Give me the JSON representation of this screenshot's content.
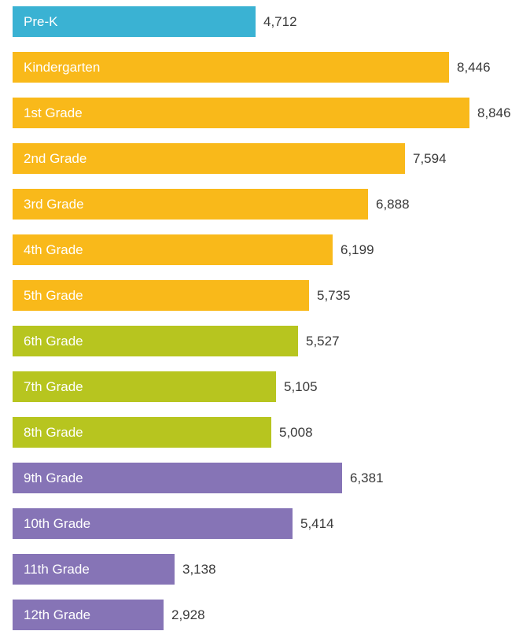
{
  "chart_data": {
    "type": "bar",
    "orientation": "horizontal",
    "title": "",
    "xlabel": "",
    "ylabel": "",
    "categories": [
      "Pre-K",
      "Kindergarten",
      "1st Grade",
      "2nd Grade",
      "3rd Grade",
      "4th Grade",
      "5th Grade",
      "6th Grade",
      "7th Grade",
      "8th Grade",
      "9th Grade",
      "10th Grade",
      "11th Grade",
      "12th Grade"
    ],
    "values": [
      4712,
      8446,
      8846,
      7594,
      6888,
      6199,
      5735,
      5527,
      5105,
      5008,
      6381,
      5414,
      3138,
      2928
    ],
    "value_labels": [
      "4,712",
      "8,446",
      "8,846",
      "7,594",
      "6,888",
      "6,199",
      "5,735",
      "5,527",
      "5,105",
      "5,008",
      "6,381",
      "5,414",
      "3,138",
      "2,928"
    ],
    "colors": [
      "#3ab2d3",
      "#f9b91a",
      "#f9b91a",
      "#f9b91a",
      "#f9b91a",
      "#f9b91a",
      "#f9b91a",
      "#b7c51f",
      "#b7c51f",
      "#b7c51f",
      "#8674b6",
      "#8674b6",
      "#8674b6",
      "#8674b6"
    ],
    "xlim": [
      0,
      8846
    ],
    "grid": false,
    "legend": "none"
  }
}
